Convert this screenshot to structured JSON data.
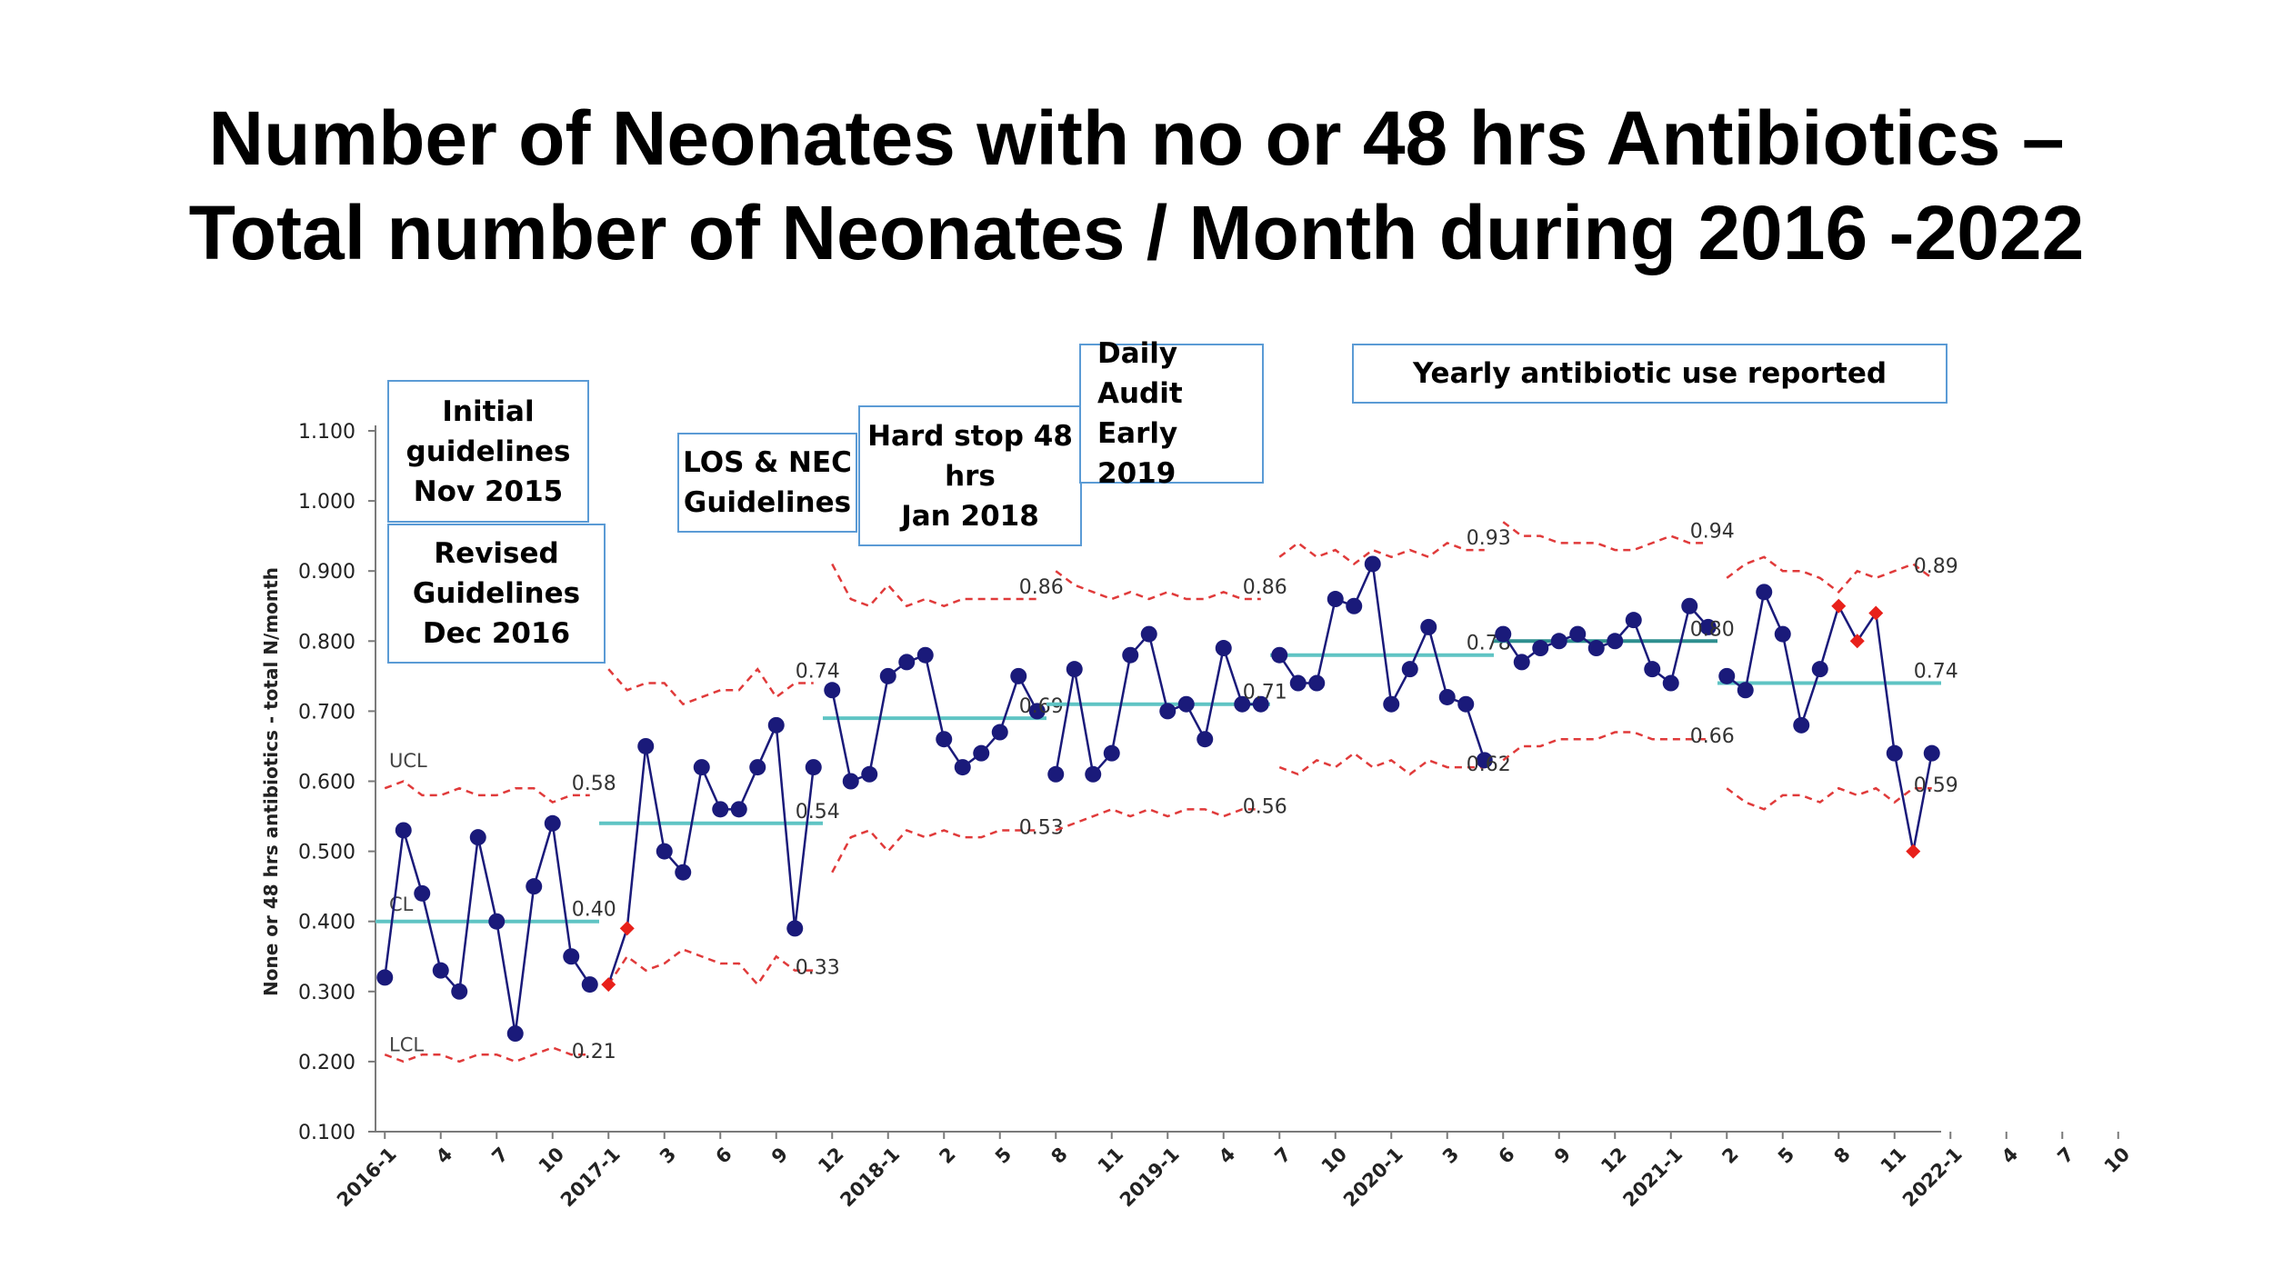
{
  "title": {
    "line1": "Number of Neonates with no or 48 hrs Antibiotics –",
    "line2": "Total number of Neonates / Month during 2016 -2022"
  },
  "annotations": {
    "initial": "Initial\nguidelines\nNov 2015",
    "revised": "Revised\nGuidelines\nDec 2016",
    "los_nec": "LOS & NEC\nGuidelines",
    "hard_stop": "Hard stop 48\nhrs\nJan 2018",
    "daily_audit": "Daily\nAudit\nEarly 2019",
    "yearly": "Yearly antibiotic use reported"
  },
  "colors": {
    "data": "#1a1a7a",
    "special": "#e8201a",
    "limits": "#e03a3a",
    "centre": "#5fc4c4",
    "centre_2021": "#2f8f8f",
    "annotation_border": "#5b9bd5"
  },
  "chart_data": {
    "type": "line",
    "subtype": "control-chart",
    "ylabel": "None or 48 hrs antibiotics - total N/month",
    "ylim": [
      0.1,
      1.1
    ],
    "yticks": [
      "0.100",
      "0.200",
      "0.300",
      "0.400",
      "0.500",
      "0.600",
      "0.700",
      "0.800",
      "0.900",
      "1.000",
      "1.100"
    ],
    "xticks": [
      "2016-1",
      "4",
      "7",
      "10",
      "2017-1",
      "3",
      "6",
      "9",
      "12",
      "2018-1",
      "2",
      "5",
      "8",
      "11",
      "2019-1",
      "4",
      "7",
      "10",
      "2020-1",
      "3",
      "6",
      "9",
      "12",
      "2021-1",
      "2",
      "5",
      "8",
      "11",
      "2022-1",
      "4",
      "7",
      "10"
    ],
    "limit_labels": {
      "ucl": "UCL",
      "cl": "CL",
      "lcl": "LCL"
    },
    "segments": [
      {
        "period": "2016",
        "values": [
          0.32,
          0.53,
          0.44,
          0.33,
          0.3,
          0.52,
          0.4,
          0.24,
          0.45,
          0.54,
          0.35,
          0.31
        ],
        "special": [],
        "cl": 0.4,
        "ucl": [
          0.59,
          0.6,
          0.58,
          0.58,
          0.59,
          0.58,
          0.58,
          0.59,
          0.59,
          0.57,
          0.58,
          0.58
        ],
        "lcl": [
          0.21,
          0.2,
          0.21,
          0.21,
          0.2,
          0.21,
          0.21,
          0.2,
          0.21,
          0.22,
          0.21,
          0.21
        ],
        "labels": {
          "ucl": "0.58",
          "cl": "0.40",
          "lcl": "0.21"
        }
      },
      {
        "period": "2017",
        "values": [
          0.31,
          0.39,
          0.65,
          0.5,
          0.47,
          0.62,
          0.56,
          0.56,
          0.62,
          0.68,
          0.39,
          0.62
        ],
        "special": [
          0,
          1
        ],
        "cl": 0.54,
        "ucl": [
          0.76,
          0.73,
          0.74,
          0.74,
          0.71,
          0.72,
          0.73,
          0.73,
          0.76,
          0.72,
          0.74,
          0.74
        ],
        "lcl": [
          0.31,
          0.35,
          0.33,
          0.34,
          0.36,
          0.35,
          0.34,
          0.34,
          0.31,
          0.35,
          0.33,
          0.33
        ],
        "labels": {
          "ucl": "0.74",
          "cl": "0.54",
          "lcl": "0.33"
        }
      },
      {
        "period": "2018",
        "values": [
          0.73,
          0.6,
          0.61,
          0.75,
          0.77,
          0.78,
          0.66,
          0.62,
          0.64,
          0.67,
          0.75,
          0.7
        ],
        "special": [],
        "cl": 0.69,
        "ucl": [
          0.91,
          0.86,
          0.85,
          0.88,
          0.85,
          0.86,
          0.85,
          0.86,
          0.86,
          0.86,
          0.86,
          0.86
        ],
        "lcl": [
          0.47,
          0.52,
          0.53,
          0.5,
          0.53,
          0.52,
          0.53,
          0.52,
          0.52,
          0.53,
          0.53,
          0.53
        ],
        "labels": {
          "ucl": "0.86",
          "cl": "0.69",
          "lcl": "0.53"
        }
      },
      {
        "period": "2019",
        "values": [
          0.61,
          0.76,
          0.61,
          0.64,
          0.78,
          0.81,
          0.7,
          0.71,
          0.66,
          0.79,
          0.71,
          0.71
        ],
        "special": [],
        "cl": 0.71,
        "ucl": [
          0.9,
          0.88,
          0.87,
          0.86,
          0.87,
          0.86,
          0.87,
          0.86,
          0.86,
          0.87,
          0.86,
          0.86
        ],
        "lcl": [
          0.53,
          0.54,
          0.55,
          0.56,
          0.55,
          0.56,
          0.55,
          0.56,
          0.56,
          0.55,
          0.56,
          0.56
        ],
        "labels": {
          "ucl": "0.86",
          "cl": "0.71",
          "lcl": "0.56"
        }
      },
      {
        "period": "2020",
        "values": [
          0.78,
          0.74,
          0.74,
          0.86,
          0.85,
          0.91,
          0.71,
          0.76,
          0.82,
          0.72,
          0.71,
          0.63
        ],
        "special": [],
        "cl": 0.78,
        "ucl": [
          0.92,
          0.94,
          0.92,
          0.93,
          0.91,
          0.93,
          0.92,
          0.93,
          0.92,
          0.94,
          0.93,
          0.93
        ],
        "lcl": [
          0.62,
          0.61,
          0.63,
          0.62,
          0.64,
          0.62,
          0.63,
          0.61,
          0.63,
          0.62,
          0.62,
          0.62
        ],
        "labels": {
          "ucl": "0.93",
          "cl": "0.78",
          "lcl": "0.62"
        }
      },
      {
        "period": "2021",
        "values": [
          0.81,
          0.77,
          0.79,
          0.8,
          0.81,
          0.79,
          0.8,
          0.83,
          0.76,
          0.74,
          0.85,
          0.82
        ],
        "special": [],
        "cl": 0.8,
        "ucl": [
          0.97,
          0.95,
          0.95,
          0.94,
          0.94,
          0.94,
          0.93,
          0.93,
          0.94,
          0.95,
          0.94,
          0.94
        ],
        "lcl": [
          0.63,
          0.65,
          0.65,
          0.66,
          0.66,
          0.66,
          0.67,
          0.67,
          0.66,
          0.66,
          0.66,
          0.66
        ],
        "labels": {
          "ucl": "0.94",
          "cl": "0.80",
          "lcl": "0.66"
        }
      },
      {
        "period": "2022",
        "values": [
          0.75,
          0.73,
          0.87,
          0.81,
          0.68,
          0.76,
          0.85,
          0.8,
          0.84,
          0.64,
          0.5,
          0.64
        ],
        "special": [
          6,
          7,
          8,
          10
        ],
        "cl": 0.74,
        "ucl": [
          0.89,
          0.91,
          0.92,
          0.9,
          0.9,
          0.89,
          0.87,
          0.9,
          0.89,
          0.9,
          0.91,
          0.89
        ],
        "lcl": [
          0.59,
          0.57,
          0.56,
          0.58,
          0.58,
          0.57,
          0.59,
          0.58,
          0.59,
          0.57,
          0.59,
          0.59
        ],
        "labels": {
          "ucl": "0.89",
          "cl": "0.74",
          "lcl": "0.59"
        }
      }
    ]
  }
}
